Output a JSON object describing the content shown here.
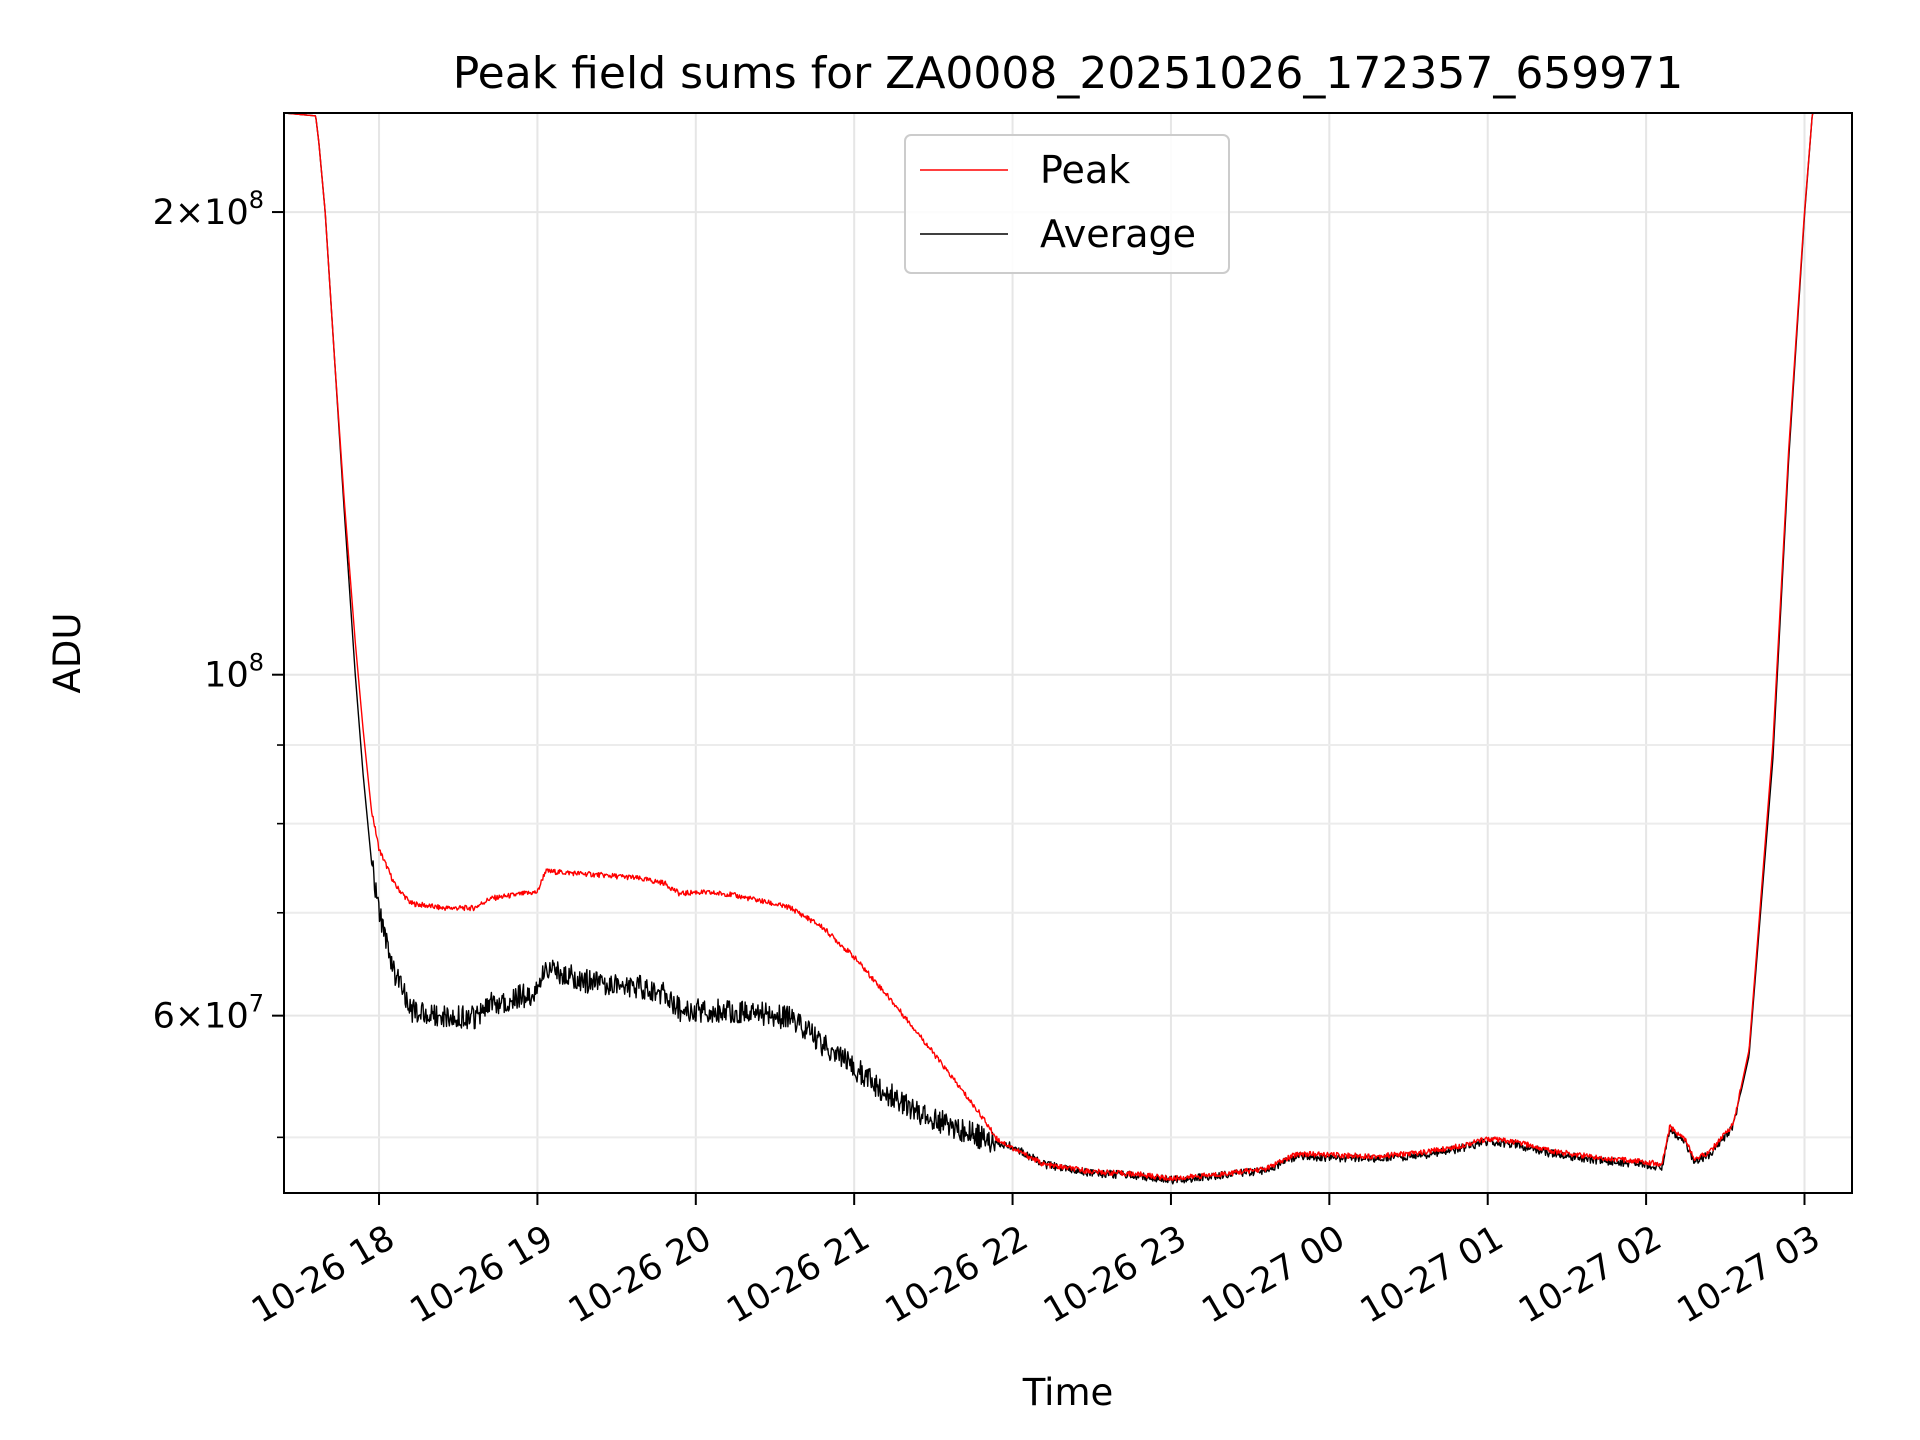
{
  "chart_data": {
    "type": "line",
    "title": "Peak field sums for ZA0008_20251026_172357_659971",
    "xlabel": "Time",
    "ylabel": "ADU",
    "yscale": "log",
    "ylim": [
      46000000,
      232000000
    ],
    "xlim_hours": [
      17.4,
      27.3
    ],
    "x_tick_labels": [
      "10-26 18",
      "10-26 19",
      "10-26 20",
      "10-26 21",
      "10-26 22",
      "10-26 23",
      "10-27 00",
      "10-27 01",
      "10-27 02",
      "10-27 03"
    ],
    "x_tick_hours": [
      18,
      19,
      20,
      21,
      22,
      23,
      24,
      25,
      26,
      27
    ],
    "y_major_ticks": [
      {
        "value": 200000000,
        "mantissa": "2",
        "label": "×10",
        "exp": "8"
      },
      {
        "value": 100000000,
        "mantissa": "",
        "label": "10",
        "exp": "8"
      },
      {
        "value": 60000000,
        "mantissa": "6",
        "label": "×10",
        "exp": "7"
      }
    ],
    "y_minor_ticks": [
      50000000,
      70000000,
      80000000,
      90000000
    ],
    "grid": true,
    "legend": {
      "position": "top-center",
      "entries": [
        "Peak",
        "Average"
      ]
    },
    "series": [
      {
        "name": "Peak",
        "color": "#ff0000",
        "points": [
          [
            17.4,
            232000000
          ],
          [
            17.6,
            231000000
          ],
          [
            17.62,
            222000000
          ],
          [
            17.66,
            200000000
          ],
          [
            17.72,
            160000000
          ],
          [
            17.78,
            130000000
          ],
          [
            17.85,
            105000000
          ],
          [
            17.9,
            92000000
          ],
          [
            17.95,
            82000000
          ],
          [
            18.0,
            77000000
          ],
          [
            18.1,
            73000000
          ],
          [
            18.2,
            71000000
          ],
          [
            18.4,
            70500000
          ],
          [
            18.6,
            70500000
          ],
          [
            18.7,
            71500000
          ],
          [
            18.9,
            72000000
          ],
          [
            19.0,
            72200000
          ],
          [
            19.05,
            74500000
          ],
          [
            19.3,
            74200000
          ],
          [
            19.6,
            73800000
          ],
          [
            19.8,
            73200000
          ],
          [
            19.9,
            72000000
          ],
          [
            20.0,
            72200000
          ],
          [
            20.2,
            72000000
          ],
          [
            20.4,
            71300000
          ],
          [
            20.6,
            70500000
          ],
          [
            20.8,
            68500000
          ],
          [
            21.0,
            65500000
          ],
          [
            21.2,
            62000000
          ],
          [
            21.4,
            58500000
          ],
          [
            21.6,
            55000000
          ],
          [
            21.8,
            51700000
          ],
          [
            21.9,
            49900000
          ],
          [
            22.0,
            49200000
          ],
          [
            22.2,
            48000000
          ],
          [
            22.5,
            47500000
          ],
          [
            22.8,
            47300000
          ],
          [
            23.0,
            47000000
          ],
          [
            23.3,
            47300000
          ],
          [
            23.6,
            47700000
          ],
          [
            23.8,
            48800000
          ],
          [
            24.0,
            48700000
          ],
          [
            24.3,
            48600000
          ],
          [
            24.6,
            48900000
          ],
          [
            24.8,
            49300000
          ],
          [
            25.0,
            49900000
          ],
          [
            25.2,
            49600000
          ],
          [
            25.4,
            49000000
          ],
          [
            25.7,
            48500000
          ],
          [
            26.0,
            48200000
          ],
          [
            26.1,
            48000000
          ],
          [
            26.15,
            50800000
          ],
          [
            26.25,
            49800000
          ],
          [
            26.3,
            48400000
          ],
          [
            26.4,
            48900000
          ],
          [
            26.55,
            51000000
          ],
          [
            26.65,
            57000000
          ],
          [
            26.8,
            90000000
          ],
          [
            26.9,
            140000000
          ],
          [
            27.0,
            200000000
          ],
          [
            27.05,
            232000000
          ],
          [
            27.3,
            232000000
          ]
        ]
      },
      {
        "name": "Average",
        "color": "#000000",
        "points": [
          [
            17.4,
            232000000
          ],
          [
            17.6,
            231000000
          ],
          [
            17.62,
            222000000
          ],
          [
            17.66,
            200000000
          ],
          [
            17.72,
            160000000
          ],
          [
            17.78,
            128000000
          ],
          [
            17.85,
            100000000
          ],
          [
            17.9,
            86000000
          ],
          [
            17.95,
            76000000
          ],
          [
            18.0,
            70000000
          ],
          [
            18.1,
            64000000
          ],
          [
            18.2,
            60500000
          ],
          [
            18.4,
            60000000
          ],
          [
            18.6,
            59800000
          ],
          [
            18.7,
            61000000
          ],
          [
            18.9,
            61800000
          ],
          [
            19.0,
            62000000
          ],
          [
            19.05,
            64500000
          ],
          [
            19.3,
            63200000
          ],
          [
            19.6,
            62800000
          ],
          [
            19.8,
            62000000
          ],
          [
            19.9,
            60500000
          ],
          [
            20.0,
            60500000
          ],
          [
            20.2,
            60500000
          ],
          [
            20.4,
            60200000
          ],
          [
            20.6,
            59800000
          ],
          [
            20.8,
            57500000
          ],
          [
            21.0,
            55500000
          ],
          [
            21.2,
            53500000
          ],
          [
            21.4,
            52000000
          ],
          [
            21.6,
            50900000
          ],
          [
            21.8,
            50000000
          ],
          [
            22.0,
            49300000
          ],
          [
            22.2,
            48000000
          ],
          [
            22.5,
            47400000
          ],
          [
            22.8,
            47200000
          ],
          [
            23.0,
            46900000
          ],
          [
            23.3,
            47200000
          ],
          [
            23.6,
            47600000
          ],
          [
            23.8,
            48600000
          ],
          [
            24.0,
            48500000
          ],
          [
            24.3,
            48400000
          ],
          [
            24.6,
            48700000
          ],
          [
            24.8,
            49100000
          ],
          [
            25.0,
            49700000
          ],
          [
            25.2,
            49400000
          ],
          [
            25.4,
            48800000
          ],
          [
            25.7,
            48300000
          ],
          [
            26.0,
            48000000
          ],
          [
            26.1,
            47800000
          ],
          [
            26.15,
            50600000
          ],
          [
            26.25,
            49600000
          ],
          [
            26.3,
            48200000
          ],
          [
            26.4,
            48700000
          ],
          [
            26.55,
            50800000
          ],
          [
            26.65,
            56500000
          ],
          [
            26.8,
            88000000
          ],
          [
            26.9,
            138000000
          ],
          [
            27.0,
            199000000
          ],
          [
            27.05,
            232000000
          ],
          [
            27.3,
            232000000
          ]
        ]
      }
    ]
  }
}
